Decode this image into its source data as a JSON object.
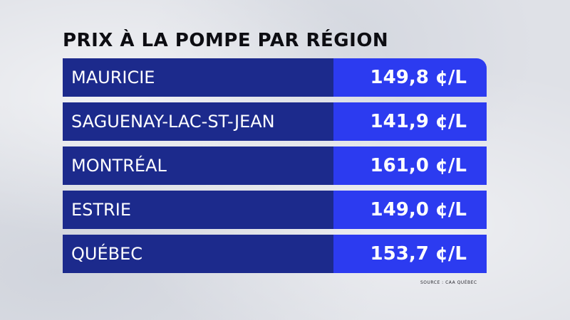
{
  "chart_data": {
    "type": "table",
    "title": "PRIX À LA POMPE PAR RÉGION",
    "columns": [
      "",
      ""
    ],
    "rows": [
      {
        "region": "MAURICIE",
        "price": "149,8 ¢/L"
      },
      {
        "region": "SAGUENAY-LAC-ST-JEAN",
        "price": "141,9 ¢/L"
      },
      {
        "region": "MONTRÉAL",
        "price": "161,0 ¢/L"
      },
      {
        "region": "ESTRIE",
        "price": "149,0 ¢/L"
      },
      {
        "region": "QUÉBEC",
        "price": "153,7 ¢/L"
      }
    ],
    "source": "SOURCE : CAA QUÉBEC"
  },
  "colors": {
    "region_cell": "#1c2a8c",
    "price_cell": "#2c3bf0",
    "title_text": "#0d0d12",
    "background": "#dfe1e7"
  }
}
